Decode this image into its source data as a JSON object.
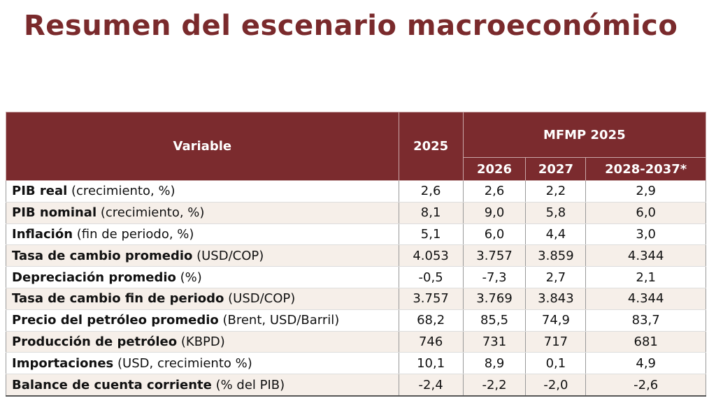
{
  "header": {
    "title": "Resumen del escenario macroeconómico"
  },
  "table": {
    "columns": {
      "variable": "Variable",
      "current": "2025",
      "group": "MFMP 2025",
      "years": [
        "2026",
        "2027",
        "2028-2037*"
      ]
    },
    "rows": [
      {
        "name": "PIB real",
        "unit": "(crecimiento, %)",
        "values": [
          "2,6",
          "2,6",
          "2,2",
          "2,9"
        ]
      },
      {
        "name": "PIB nominal",
        "unit": "(crecimiento, %)",
        "values": [
          "8,1",
          "9,0",
          "5,8",
          "6,0"
        ]
      },
      {
        "name": "Inflación",
        "unit": "(fin de periodo, %)",
        "values": [
          "5,1",
          "6,0",
          "4,4",
          "3,0"
        ]
      },
      {
        "name": "Tasa de cambio promedio",
        "unit": "(USD/COP)",
        "values": [
          "4.053",
          "3.757",
          "3.859",
          "4.344"
        ]
      },
      {
        "name": "Depreciación promedio",
        "unit": "(%)",
        "values": [
          "-0,5",
          "-7,3",
          "2,7",
          "2,1"
        ]
      },
      {
        "name": "Tasa de cambio fin de periodo",
        "unit": "(USD/COP)",
        "values": [
          "3.757",
          "3.769",
          "3.843",
          "4.344"
        ]
      },
      {
        "name": "Precio del petróleo promedio",
        "unit": "(Brent, USD/Barril)",
        "values": [
          "68,2",
          "85,5",
          "74,9",
          "83,7"
        ]
      },
      {
        "name": "Producción de petróleo",
        "unit": "(KBPD)",
        "values": [
          "746",
          "731",
          "717",
          "681"
        ]
      },
      {
        "name": "Importaciones",
        "unit": "(USD, crecimiento %)",
        "values": [
          "10,1",
          "8,9",
          "0,1",
          "4,9"
        ]
      },
      {
        "name": "Balance de cuenta corriente",
        "unit": "(% del PIB)",
        "values": [
          "-2,4",
          "-2,2",
          "-2,0",
          "-2,6"
        ]
      }
    ]
  }
}
